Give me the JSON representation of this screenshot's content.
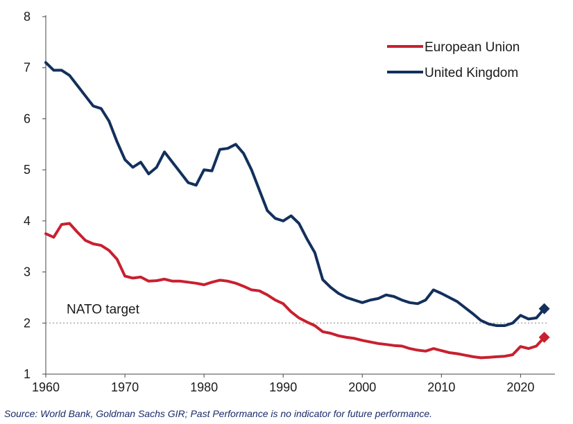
{
  "chart_data": {
    "type": "line",
    "title": "",
    "xlabel": "",
    "ylabel": "",
    "xlim": [
      1960,
      2024
    ],
    "ylim": [
      1,
      8
    ],
    "x_ticks": [
      1960,
      1970,
      1980,
      1990,
      2000,
      2010,
      2020
    ],
    "y_ticks": [
      1,
      2,
      3,
      4,
      5,
      6,
      7,
      8
    ],
    "grid": false,
    "legend_placement": "top-right",
    "reference_line": {
      "value": 2,
      "label": "NATO target",
      "style": "dotted"
    },
    "series": [
      {
        "name": "European Union",
        "color": "#c8202f",
        "end_marker": {
          "x": 2023,
          "y": 1.72,
          "shape": "diamond"
        },
        "x": [
          1960,
          1961,
          1962,
          1963,
          1964,
          1965,
          1966,
          1967,
          1968,
          1969,
          1970,
          1971,
          1972,
          1973,
          1974,
          1975,
          1976,
          1977,
          1978,
          1979,
          1980,
          1981,
          1982,
          1983,
          1984,
          1985,
          1986,
          1987,
          1988,
          1989,
          1990,
          1991,
          1992,
          1993,
          1994,
          1995,
          1996,
          1997,
          1998,
          1999,
          2000,
          2001,
          2002,
          2003,
          2004,
          2005,
          2006,
          2007,
          2008,
          2009,
          2010,
          2011,
          2012,
          2013,
          2014,
          2015,
          2016,
          2017,
          2018,
          2019,
          2020,
          2021,
          2022,
          2023
        ],
        "y": [
          3.75,
          3.68,
          3.93,
          3.95,
          3.78,
          3.62,
          3.55,
          3.52,
          3.42,
          3.25,
          2.92,
          2.88,
          2.9,
          2.82,
          2.83,
          2.86,
          2.82,
          2.82,
          2.8,
          2.78,
          2.75,
          2.8,
          2.84,
          2.82,
          2.78,
          2.72,
          2.65,
          2.63,
          2.55,
          2.45,
          2.38,
          2.22,
          2.1,
          2.02,
          1.95,
          1.83,
          1.8,
          1.75,
          1.72,
          1.7,
          1.66,
          1.63,
          1.6,
          1.58,
          1.56,
          1.55,
          1.5,
          1.47,
          1.45,
          1.5,
          1.46,
          1.42,
          1.4,
          1.37,
          1.34,
          1.32,
          1.33,
          1.34,
          1.35,
          1.38,
          1.54,
          1.5,
          1.55,
          1.72
        ]
      },
      {
        "name": "United Kingdom",
        "color": "#13305c",
        "end_marker": {
          "x": 2023,
          "y": 2.28,
          "shape": "diamond"
        },
        "x": [
          1960,
          1961,
          1962,
          1963,
          1964,
          1965,
          1966,
          1967,
          1968,
          1969,
          1970,
          1971,
          1972,
          1973,
          1974,
          1975,
          1976,
          1977,
          1978,
          1979,
          1980,
          1981,
          1982,
          1983,
          1984,
          1985,
          1986,
          1987,
          1988,
          1989,
          1990,
          1991,
          1992,
          1993,
          1994,
          1995,
          1996,
          1997,
          1998,
          1999,
          2000,
          2001,
          2002,
          2003,
          2004,
          2005,
          2006,
          2007,
          2008,
          2009,
          2010,
          2011,
          2012,
          2013,
          2014,
          2015,
          2016,
          2017,
          2018,
          2019,
          2020,
          2021,
          2022,
          2023
        ],
        "y": [
          7.1,
          6.95,
          6.95,
          6.85,
          6.65,
          6.45,
          6.25,
          6.2,
          5.95,
          5.55,
          5.2,
          5.05,
          5.15,
          4.92,
          5.05,
          5.35,
          5.15,
          4.95,
          4.75,
          4.7,
          5.0,
          4.98,
          5.4,
          5.42,
          5.5,
          5.32,
          5.0,
          4.6,
          4.2,
          4.05,
          4.0,
          4.1,
          3.95,
          3.65,
          3.38,
          2.85,
          2.7,
          2.58,
          2.5,
          2.45,
          2.4,
          2.45,
          2.48,
          2.55,
          2.52,
          2.45,
          2.4,
          2.38,
          2.45,
          2.65,
          2.58,
          2.5,
          2.42,
          2.3,
          2.18,
          2.05,
          1.98,
          1.95,
          1.95,
          2.0,
          2.15,
          2.08,
          2.1,
          2.28
        ]
      }
    ]
  },
  "source_note": "Source: World Bank, Goldman Sachs GIR; Past Performance is no indicator for future performance."
}
